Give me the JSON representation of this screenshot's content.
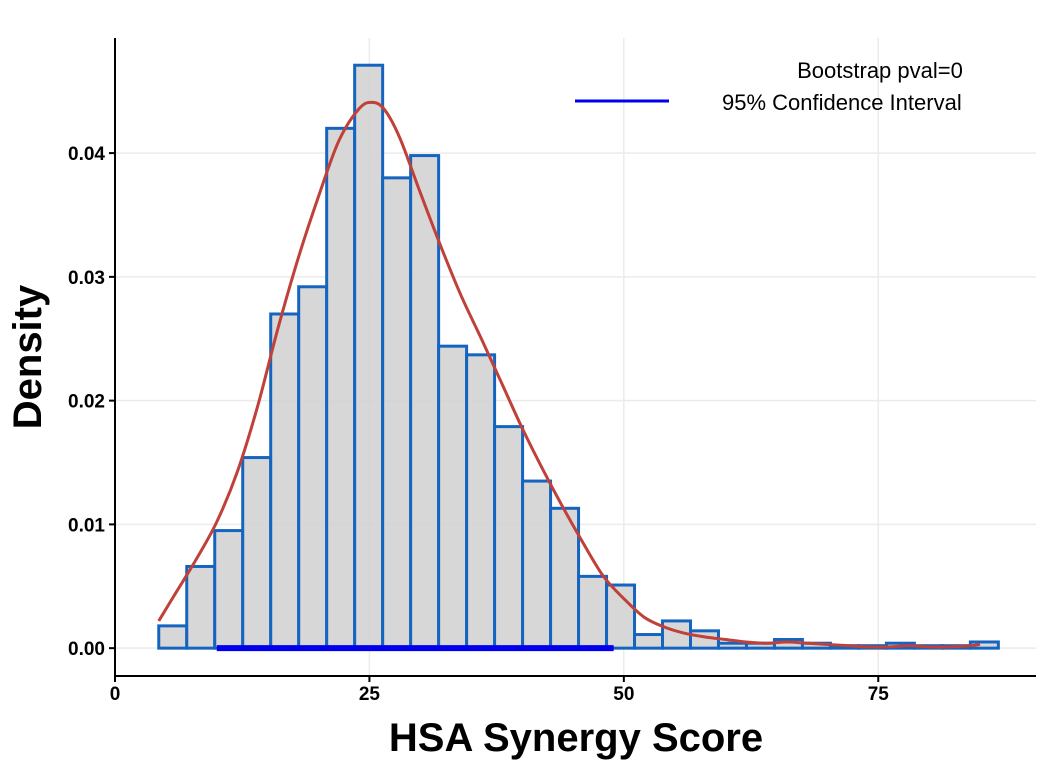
{
  "chart_data": {
    "type": "bar",
    "xlabel": "HSA Synergy Score",
    "ylabel": "Density",
    "xlim": [
      0,
      90.5
    ],
    "ylim": [
      -0.00225,
      0.0493
    ],
    "x_ticks": [
      0,
      25,
      50,
      75
    ],
    "x_tick_labels": [
      "0",
      "25",
      "50",
      "75"
    ],
    "y_ticks": [
      0.0,
      0.01,
      0.02,
      0.03,
      0.04
    ],
    "y_tick_labels": [
      "0.00",
      "0.01",
      "0.02",
      "0.03",
      "0.04"
    ],
    "grid": true,
    "bin_edges": [
      4.3,
      7.05,
      9.8,
      12.55,
      15.3,
      18.05,
      20.8,
      23.55,
      26.3,
      29.05,
      31.8,
      34.55,
      37.3,
      40.05,
      42.8,
      45.55,
      48.3,
      51.05,
      53.8,
      56.55,
      59.3,
      62.05,
      64.8,
      67.55,
      70.3,
      73.05,
      75.8,
      78.55,
      81.3,
      84.05,
      86.8
    ],
    "values": [
      0.0018,
      0.0066,
      0.0095,
      0.0154,
      0.027,
      0.0292,
      0.042,
      0.0471,
      0.038,
      0.0398,
      0.0244,
      0.0237,
      0.0179,
      0.0135,
      0.0113,
      0.0058,
      0.0051,
      0.0011,
      0.0022,
      0.0014,
      0.0004,
      0.0004,
      0.0007,
      0.0004,
      0.0002,
      0.0002,
      0.0004,
      0.0002,
      0.0002,
      0.0005
    ],
    "series": [
      {
        "name": "density",
        "x": [
          4.3,
          6.0,
          8.0,
          10.0,
          12.0,
          14.0,
          16.0,
          18.0,
          20.0,
          22.0,
          24.0,
          25.3,
          26.5,
          28.0,
          30.0,
          32.0,
          34.0,
          36.0,
          38.0,
          40.0,
          42.0,
          44.0,
          46.0,
          48.0,
          50.0,
          52.0,
          54.0,
          56.0,
          58.0,
          60.0,
          62.0,
          64.0,
          66.0,
          68.0,
          70.0,
          72.0,
          74.0,
          76.0,
          78.0,
          80.0,
          82.0,
          84.0,
          85.0
        ],
        "y": [
          0.0022,
          0.0045,
          0.0072,
          0.0102,
          0.0142,
          0.0195,
          0.0258,
          0.0315,
          0.0365,
          0.041,
          0.0436,
          0.0441,
          0.0435,
          0.0412,
          0.0368,
          0.0325,
          0.0285,
          0.025,
          0.0214,
          0.0178,
          0.0145,
          0.0114,
          0.0085,
          0.0058,
          0.004,
          0.0025,
          0.0017,
          0.0012,
          0.0009,
          0.0007,
          0.0005,
          0.0004,
          0.0005,
          0.0004,
          0.0003,
          0.0002,
          0.0001,
          0.0001,
          0.0002,
          0.0001,
          0.0001,
          0.0002,
          0.0003
        ]
      },
      {
        "name": "95% Confidence Interval",
        "x": [
          10.0,
          49.0
        ],
        "y": [
          0.0,
          0.0
        ]
      }
    ],
    "legend": {
      "placement": "top-right",
      "title": "Bootstrap pval=0",
      "entries": [
        "95% Confidence Interval"
      ]
    },
    "colors": {
      "bar_fill": "#d3d3d3",
      "bar_stroke": "#1565c0",
      "density_line": "#c0403a",
      "ci_line": "#0000ee",
      "grid": "#ebebeb",
      "axis": "#000000"
    }
  }
}
